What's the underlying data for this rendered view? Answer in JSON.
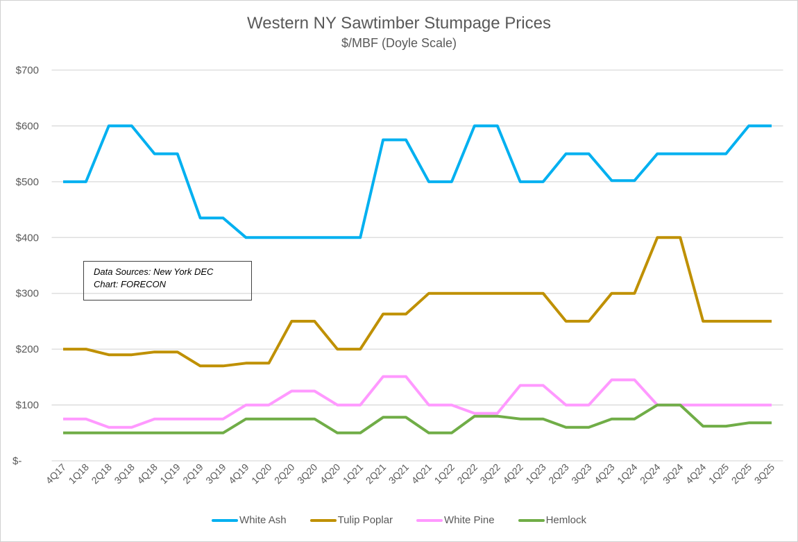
{
  "chart_data": {
    "type": "line",
    "title": "Western NY Sawtimber Stumpage Prices",
    "subtitle": "$/MBF (Doyle Scale)",
    "xlabel": "",
    "ylabel": "",
    "ylim": [
      0,
      700
    ],
    "yticks": [
      0,
      100,
      200,
      300,
      400,
      500,
      600,
      700
    ],
    "ytick_labels": [
      "$-",
      "$100",
      "$200",
      "$300",
      "$400",
      "$500",
      "$600",
      "$700"
    ],
    "grid": true,
    "legend": "bottom",
    "categories": [
      "4Q17",
      "1Q18",
      "2Q18",
      "3Q18",
      "4Q18",
      "1Q19",
      "2Q19",
      "3Q19",
      "4Q19",
      "1Q20",
      "2Q20",
      "3Q20",
      "4Q20",
      "1Q21",
      "2Q21",
      "3Q21",
      "4Q21",
      "1Q22",
      "2Q22",
      "3Q22",
      "4Q22",
      "1Q23",
      "2Q23",
      "3Q23",
      "4Q23",
      "1Q24",
      "2Q24",
      "3Q24",
      "4Q24",
      "1Q25",
      "2Q25",
      "3Q25"
    ],
    "series": [
      {
        "name": "White Ash",
        "color": "#00b0f0",
        "values": [
          500,
          500,
          600,
          600,
          550,
          550,
          435,
          435,
          400,
          400,
          400,
          400,
          400,
          400,
          575,
          575,
          500,
          500,
          600,
          600,
          500,
          500,
          550,
          550,
          502,
          502,
          550,
          550,
          550,
          550,
          600,
          600
        ]
      },
      {
        "name": "Tulip Poplar",
        "color": "#bf9000",
        "values": [
          200,
          200,
          190,
          190,
          195,
          195,
          170,
          170,
          175,
          175,
          250,
          250,
          200,
          200,
          263,
          263,
          300,
          300,
          300,
          300,
          300,
          300,
          250,
          250,
          300,
          300,
          400,
          400,
          250,
          250,
          250,
          250
        ]
      },
      {
        "name": "White Pine",
        "color": "#ff99ff",
        "values": [
          75,
          75,
          60,
          60,
          75,
          75,
          75,
          75,
          100,
          100,
          125,
          125,
          100,
          100,
          151,
          151,
          100,
          100,
          85,
          85,
          135,
          135,
          100,
          100,
          145,
          145,
          100,
          100,
          100,
          100,
          100,
          100
        ]
      },
      {
        "name": "Hemlock",
        "color": "#70ad47",
        "values": [
          50,
          50,
          50,
          50,
          50,
          50,
          50,
          50,
          75,
          75,
          75,
          75,
          50,
          50,
          78,
          78,
          50,
          50,
          80,
          80,
          75,
          75,
          60,
          60,
          75,
          75,
          100,
          100,
          62,
          62,
          68,
          68
        ]
      }
    ],
    "annotation": {
      "line1": "Data Sources: New York DEC",
      "line2": "Chart: FORECON"
    }
  }
}
